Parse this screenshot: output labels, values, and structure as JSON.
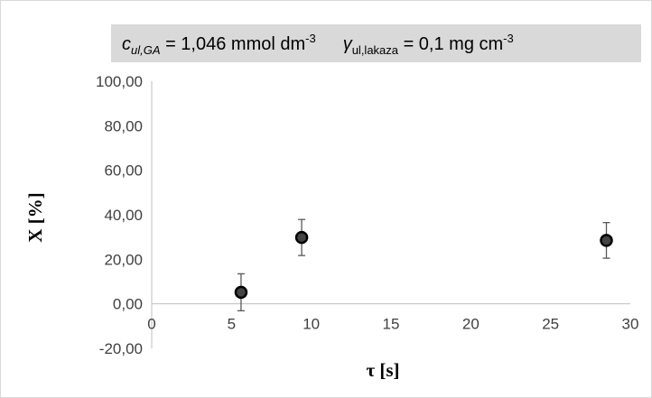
{
  "chart_data": {
    "type": "scatter",
    "title": "",
    "xlabel": "τ [s]",
    "ylabel": "X [%]",
    "xlim": [
      0,
      30
    ],
    "ylim": [
      -20,
      100
    ],
    "x_ticks": [
      0,
      5,
      10,
      15,
      20,
      25,
      30
    ],
    "x_tick_labels": [
      "0",
      "5",
      "10",
      "15",
      "20",
      "25",
      "30"
    ],
    "y_ticks": [
      -20,
      0,
      20,
      40,
      60,
      80,
      100
    ],
    "y_tick_labels": [
      "-20,00",
      "0,00",
      "20,00",
      "40,00",
      "60,00",
      "80,00",
      "100,00"
    ],
    "grid": false,
    "points": [
      {
        "x": 5.6,
        "y": 5.2,
        "err": 8.3
      },
      {
        "x": 9.4,
        "y": 29.8,
        "err": 8.1
      },
      {
        "x": 28.5,
        "y": 28.5,
        "err": 8.0
      }
    ],
    "annotation": {
      "c_sym": "c",
      "c_sub": "ul,GA",
      "c_value": " = 1,046 mmol dm",
      "c_sup": "-3",
      "g_sym": "γ",
      "g_sub": "ul,lakaza",
      "g_value": " = 0,1 mg cm",
      "g_sup": "-3",
      "background": "#d9d9d9"
    },
    "marker_color": "#000000",
    "errorbar_color": "#595959",
    "axis_color": "#bfbfbf"
  }
}
